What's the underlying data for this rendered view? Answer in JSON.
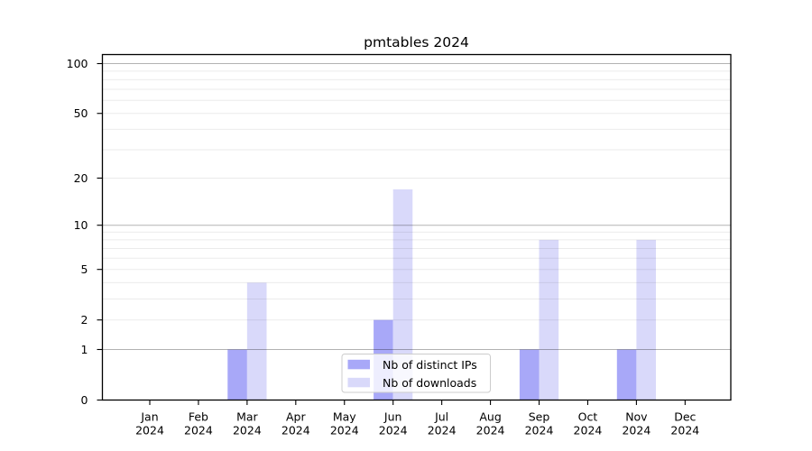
{
  "chart_data": {
    "type": "bar",
    "title": "pmtables 2024",
    "xlabel": "",
    "ylabel": "",
    "categories": [
      "Jan 2024",
      "Feb 2024",
      "Mar 2024",
      "Apr 2024",
      "May 2024",
      "Jun 2024",
      "Jul 2024",
      "Aug 2024",
      "Sep 2024",
      "Oct 2024",
      "Nov 2024",
      "Dec 2024"
    ],
    "series": [
      {
        "name": "Nb of distinct IPs",
        "color": "#a8a8f8",
        "values": [
          0,
          0,
          1,
          0,
          0,
          2,
          0,
          0,
          1,
          0,
          1,
          0
        ]
      },
      {
        "name": "Nb of downloads",
        "color": "#d9d9fa",
        "values": [
          0,
          0,
          4,
          0,
          0,
          17,
          0,
          0,
          8,
          0,
          8,
          0
        ]
      }
    ],
    "yscale": "log10(1+x)",
    "ylim": [
      0,
      115
    ],
    "yticks": [
      0,
      1,
      2,
      5,
      10,
      20,
      50,
      100
    ],
    "major_gridlines": [
      1,
      10,
      100
    ],
    "minor_gridlines": [
      2,
      3,
      4,
      5,
      6,
      7,
      8,
      9,
      20,
      30,
      40,
      50,
      60,
      70,
      80,
      90
    ],
    "grid": true,
    "legend_position": "lower center (inside plot)"
  },
  "style": {
    "spine_color": "#000000",
    "major_grid_color": "rgba(0,0,0,0.30)",
    "minor_grid_color": "rgba(0,0,0,0.08)",
    "legend_border_color": "#cccccc",
    "legend_bg_color": "rgba(255,255,255,0.8)",
    "text_color": "#000000"
  }
}
